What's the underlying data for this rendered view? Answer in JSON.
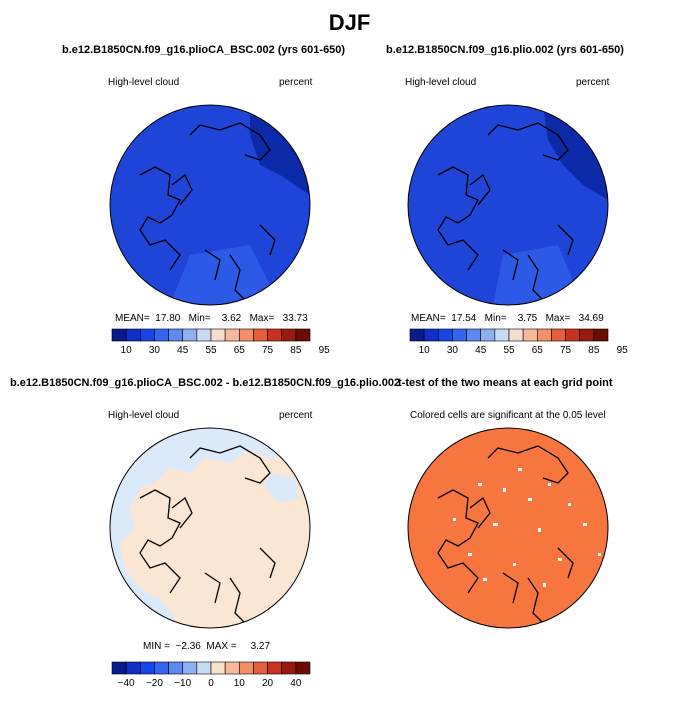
{
  "title": "DJF",
  "panels": [
    {
      "title": "b.e12.B1850CN.f09_g16.plioCA_BSC.002 (yrs 601-650)",
      "left_label": "High-level cloud",
      "right_label": "percent",
      "stats": {
        "mean_label": "MEAN=",
        "mean": "17.80",
        "min_label": "Min=",
        "min": "3.62",
        "max_label": "Max=",
        "max": "33.73"
      },
      "colorbar": {
        "labels": [
          "10",
          "30",
          "45",
          "55",
          "65",
          "75",
          "85",
          "95"
        ],
        "colors": [
          "#0a1a8c",
          "#0f2fc7",
          "#1746e6",
          "#3366ee",
          "#5c8aee",
          "#8fb0f0",
          "#c8dbf5",
          "#f5ddd0",
          "#f7b89b",
          "#f29068",
          "#e55f3c",
          "#c8321f",
          "#991a0e",
          "#6b0c05"
        ]
      },
      "map_fill": "#1f45d8"
    },
    {
      "title": "b.e12.B1850CN.f09_g16.plio.002 (yrs 601-650)",
      "left_label": "High-level cloud",
      "right_label": "percent",
      "stats": {
        "mean_label": "MEAN=",
        "mean": "17.54",
        "min_label": "Min=",
        "min": "3.75",
        "max_label": "Max=",
        "max": "34.69"
      },
      "colorbar": {
        "labels": [
          "10",
          "30",
          "45",
          "55",
          "65",
          "75",
          "85",
          "95"
        ],
        "colors": [
          "#0a1a8c",
          "#0f2fc7",
          "#1746e6",
          "#3366ee",
          "#5c8aee",
          "#8fb0f0",
          "#c8dbf5",
          "#f5ddd0",
          "#f7b89b",
          "#f29068",
          "#e55f3c",
          "#c8321f",
          "#991a0e",
          "#6b0c05"
        ]
      },
      "map_fill": "#1f45d8"
    },
    {
      "title": "b.e12.B1850CN.f09_g16.plioCA_BSC.002 - b.e12.B1850CN.f09_g16.plio.002",
      "left_label": "High-level cloud",
      "right_label": "percent",
      "stats": {
        "min_label": "MIN =",
        "min": "−2.36",
        "max_label": "MAX =",
        "max": "3.27"
      },
      "colorbar": {
        "labels": [
          "−40",
          "−20",
          "−10",
          "0",
          "10",
          "20",
          "40"
        ],
        "colors": [
          "#0a1a8c",
          "#0f2fc7",
          "#1746e6",
          "#3366ee",
          "#5c8aee",
          "#8fb0f0",
          "#c8dbf5",
          "#f9e2cc",
          "#f7b89b",
          "#f29068",
          "#e55f3c",
          "#c8321f",
          "#991a0e",
          "#6b0c05"
        ]
      },
      "map_fill": "#fbe6d3",
      "map_fill_alt": "#dbeafa"
    },
    {
      "title": "t-test of the two means at each grid point",
      "left_label": "Colored cells are significant at the 0.05 level",
      "map_fill": "#f7763f"
    }
  ]
}
